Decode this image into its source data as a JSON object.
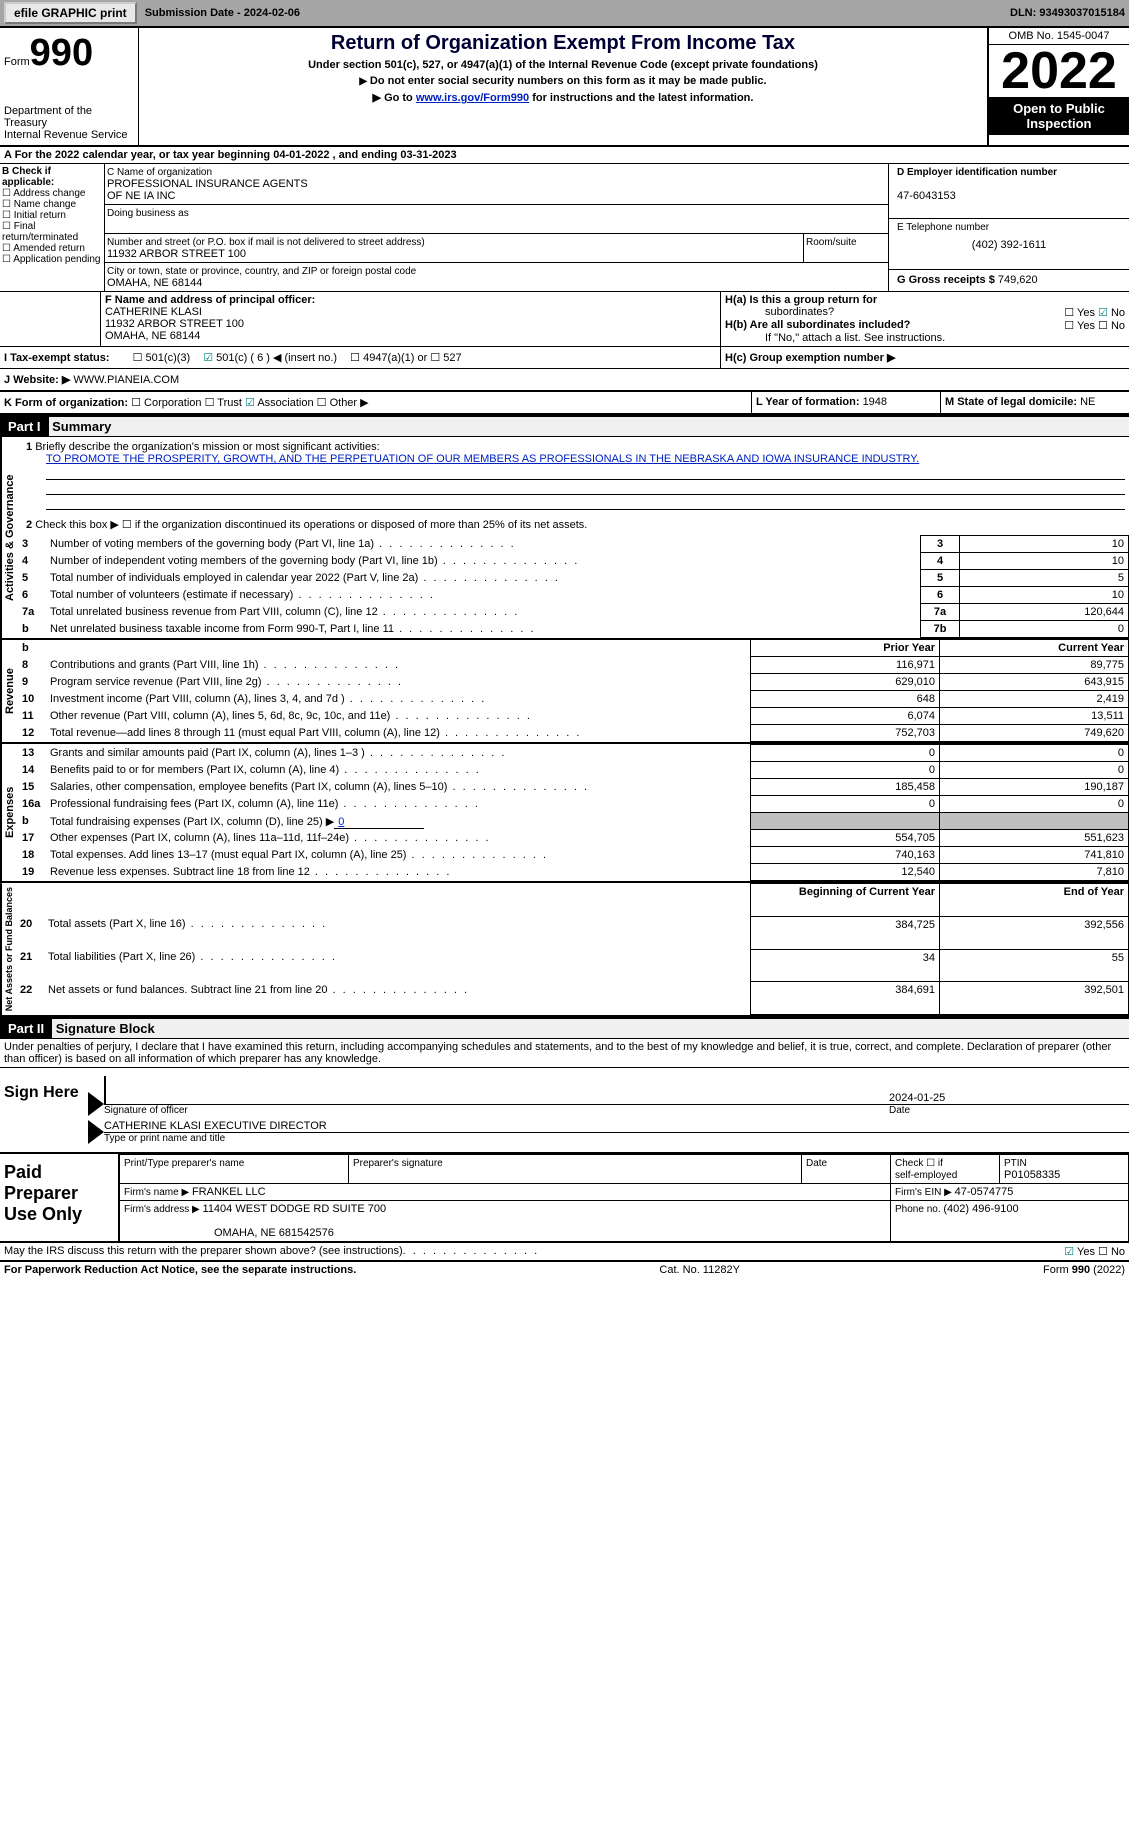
{
  "topbar": {
    "btn1": "efile GRAPHIC print",
    "sub_lbl": "Submission Date - ",
    "sub_date": "2024-02-06",
    "dln_lbl": "DLN: ",
    "dln": "93493037015184"
  },
  "header": {
    "form_word": "Form",
    "form_num": "990",
    "dept": "Department of the Treasury",
    "irs": "Internal Revenue Service",
    "title": "Return of Organization Exempt From Income Tax",
    "sub1": "Under section 501(c), 527, or 4947(a)(1) of the Internal Revenue Code (except private foundations)",
    "sub2": "Do not enter social security numbers on this form as it may be made public.",
    "sub3a": "Go to ",
    "sub3_link": "www.irs.gov/Form990",
    "sub3b": " for instructions and the latest information.",
    "omb": "OMB No. 1545-0047",
    "year": "2022",
    "insp1": "Open to Public",
    "insp2": "Inspection"
  },
  "period": {
    "a": "A For the 2022 calendar year, or tax year beginning ",
    "begin": "04-01-2022",
    "mid": "  , and ending ",
    "end": "03-31-2023"
  },
  "boxB": {
    "hdr": "B Check if applicable:",
    "items": [
      "Address change",
      "Name change",
      "Initial return",
      "Final return/terminated",
      "Amended return",
      "Application pending"
    ]
  },
  "boxC": {
    "hdr": "C Name of organization",
    "name1": "PROFESSIONAL INSURANCE AGENTS",
    "name2": "OF NE IA INC",
    "dba": "Doing business as",
    "addr_hdr": "Number and street (or P.O. box if mail is not delivered to street address)",
    "room": "Room/suite",
    "addr": "11932 ARBOR STREET 100",
    "city_hdr": "City or town, state or province, country, and ZIP or foreign postal code",
    "city": "OMAHA, NE  68144"
  },
  "boxD": {
    "hdr": "D Employer identification number",
    "ein": "47-6043153"
  },
  "boxE": {
    "hdr": "E Telephone number",
    "tel": "(402) 392-1611"
  },
  "boxG": {
    "hdr": "G Gross receipts $ ",
    "amt": "749,620"
  },
  "boxF": {
    "hdr": "F Name and address of principal officer:",
    "n": "CATHERINE KLASI",
    "a": "11932 ARBOR STREET 100",
    "c": "OMAHA, NE  68144"
  },
  "boxH": {
    "a": "H(a)  Is this a group return for",
    "a2": "subordinates?",
    "b": "H(b)  Are all subordinates included?",
    "b2": "If \"No,\" attach a list. See instructions.",
    "c": "H(c)  Group exemption number ▶",
    "yes": "Yes",
    "no": "No"
  },
  "boxI": {
    "hdr": "I  Tax-exempt status:",
    "o1": "501(c)(3)",
    "o2": "501(c) ( 6 ) ◀ (insert no.)",
    "o3": "4947(a)(1) or",
    "o4": "527"
  },
  "boxJ": {
    "hdr": "J  Website: ▶",
    "val": "WWW.PIANEIA.COM"
  },
  "boxK": {
    "hdr": "K Form of organization:",
    "o1": "Corporation",
    "o2": "Trust",
    "o3": "Association",
    "o4": "Other ▶"
  },
  "boxL": {
    "hdr": "L Year of formation: ",
    "val": "1948"
  },
  "boxM": {
    "hdr": "M State of legal domicile: ",
    "val": "NE"
  },
  "part1": {
    "hdr": "Part I",
    "title": "Summary"
  },
  "summary": {
    "l1a": "Briefly describe the organization's mission or most significant activities:",
    "l1b": "TO PROMOTE THE PROSPERITY, GROWTH, AND THE PERPETUATION OF OUR MEMBERS AS PROFESSIONALS IN THE NEBRASKA AND IOWA INSURANCE INDUSTRY.",
    "l2": "Check this box ▶ ☐  if the organization discontinued its operations or disposed of more than 25% of its net assets.",
    "rows": [
      {
        "n": "3",
        "t": "Number of voting members of the governing body (Part VI, line 1a)",
        "b": "3",
        "v": "10"
      },
      {
        "n": "4",
        "t": "Number of independent voting members of the governing body (Part VI, line 1b)",
        "b": "4",
        "v": "10"
      },
      {
        "n": "5",
        "t": "Total number of individuals employed in calendar year 2022 (Part V, line 2a)",
        "b": "5",
        "v": "5"
      },
      {
        "n": "6",
        "t": "Total number of volunteers (estimate if necessary)",
        "b": "6",
        "v": "10"
      },
      {
        "n": "7a",
        "t": "Total unrelated business revenue from Part VIII, column (C), line 12",
        "b": "7a",
        "v": "120,644"
      },
      {
        "n": "b",
        "t": "Net unrelated business taxable income from Form 990-T, Part I, line 11",
        "b": "7b",
        "v": "0"
      }
    ],
    "py": "Prior Year",
    "cy": "Current Year",
    "rev": [
      {
        "n": "8",
        "t": "Contributions and grants (Part VIII, line 1h)",
        "p": "116,971",
        "c": "89,775"
      },
      {
        "n": "9",
        "t": "Program service revenue (Part VIII, line 2g)",
        "p": "629,010",
        "c": "643,915"
      },
      {
        "n": "10",
        "t": "Investment income (Part VIII, column (A), lines 3, 4, and 7d )",
        "p": "648",
        "c": "2,419"
      },
      {
        "n": "11",
        "t": "Other revenue (Part VIII, column (A), lines 5, 6d, 8c, 9c, 10c, and 11e)",
        "p": "6,074",
        "c": "13,511"
      },
      {
        "n": "12",
        "t": "Total revenue—add lines 8 through 11 (must equal Part VIII, column (A), line 12)",
        "p": "752,703",
        "c": "749,620"
      }
    ],
    "exp": [
      {
        "n": "13",
        "t": "Grants and similar amounts paid (Part IX, column (A), lines 1–3 )",
        "p": "0",
        "c": "0"
      },
      {
        "n": "14",
        "t": "Benefits paid to or for members (Part IX, column (A), line 4)",
        "p": "0",
        "c": "0"
      },
      {
        "n": "15",
        "t": "Salaries, other compensation, employee benefits (Part IX, column (A), lines 5–10)",
        "p": "185,458",
        "c": "190,187"
      },
      {
        "n": "16a",
        "t": "Professional fundraising fees (Part IX, column (A), line 11e)",
        "p": "0",
        "c": "0"
      },
      {
        "n": "b",
        "t": "Total fundraising expenses (Part IX, column (D), line 25) ▶",
        "p": "grey",
        "c": "grey",
        "fund": "0"
      },
      {
        "n": "17",
        "t": "Other expenses (Part IX, column (A), lines 11a–11d, 11f–24e)",
        "p": "554,705",
        "c": "551,623"
      },
      {
        "n": "18",
        "t": "Total expenses. Add lines 13–17 (must equal Part IX, column (A), line 25)",
        "p": "740,163",
        "c": "741,810"
      },
      {
        "n": "19",
        "t": "Revenue less expenses. Subtract line 18 from line 12",
        "p": "12,540",
        "c": "7,810"
      }
    ],
    "bcy": "Beginning of Current Year",
    "ecy": "End of Year",
    "net": [
      {
        "n": "20",
        "t": "Total assets (Part X, line 16)",
        "p": "384,725",
        "c": "392,556"
      },
      {
        "n": "21",
        "t": "Total liabilities (Part X, line 26)",
        "p": "34",
        "c": "55"
      },
      {
        "n": "22",
        "t": "Net assets or fund balances. Subtract line 21 from line 20",
        "p": "384,691",
        "c": "392,501"
      }
    ],
    "side1": "Activities & Governance",
    "side2": "Revenue",
    "side3": "Expenses",
    "side4": "Net Assets or Fund Balances"
  },
  "part2": {
    "hdr": "Part II",
    "title": "Signature Block",
    "decl": "Under penalties of perjury, I declare that I have examined this return, including accompanying schedules and statements, and to the best of my knowledge and belief, it is true, correct, and complete. Declaration of preparer (other than officer) is based on all information of which preparer has any knowledge."
  },
  "sign": {
    "lbl": "Sign Here",
    "sig": "Signature of officer",
    "date": "Date",
    "dt": "2024-01-25",
    "name": "CATHERINE KLASI  EXECUTIVE DIRECTOR",
    "type": "Type or print name and title"
  },
  "prep": {
    "lbl": "Paid Preparer Use Only",
    "h1": "Print/Type preparer's name",
    "h2": "Preparer's signature",
    "h3": "Date",
    "h4a": "Check ☐  if",
    "h4b": "self-employed",
    "h5": "PTIN",
    "ptin": "P01058335",
    "firm_lbl": "Firm's name   ▶ ",
    "firm": "FRANKEL LLC",
    "ein_lbl": "Firm's EIN ▶ ",
    "ein": "47-0574775",
    "addr_lbl": "Firm's address ▶ ",
    "addr1": "11404 WEST DODGE RD SUITE 700",
    "addr2": "OMAHA, NE  681542576",
    "ph_lbl": "Phone no. ",
    "ph": "(402) 496-9100"
  },
  "footer": {
    "q": "May the IRS discuss this return with the preparer shown above? (see instructions)",
    "yes": "Yes",
    "no": "No",
    "pra": "For Paperwork Reduction Act Notice, see the separate instructions.",
    "cat": "Cat. No. 11282Y",
    "form": "Form 990 (2022)"
  }
}
